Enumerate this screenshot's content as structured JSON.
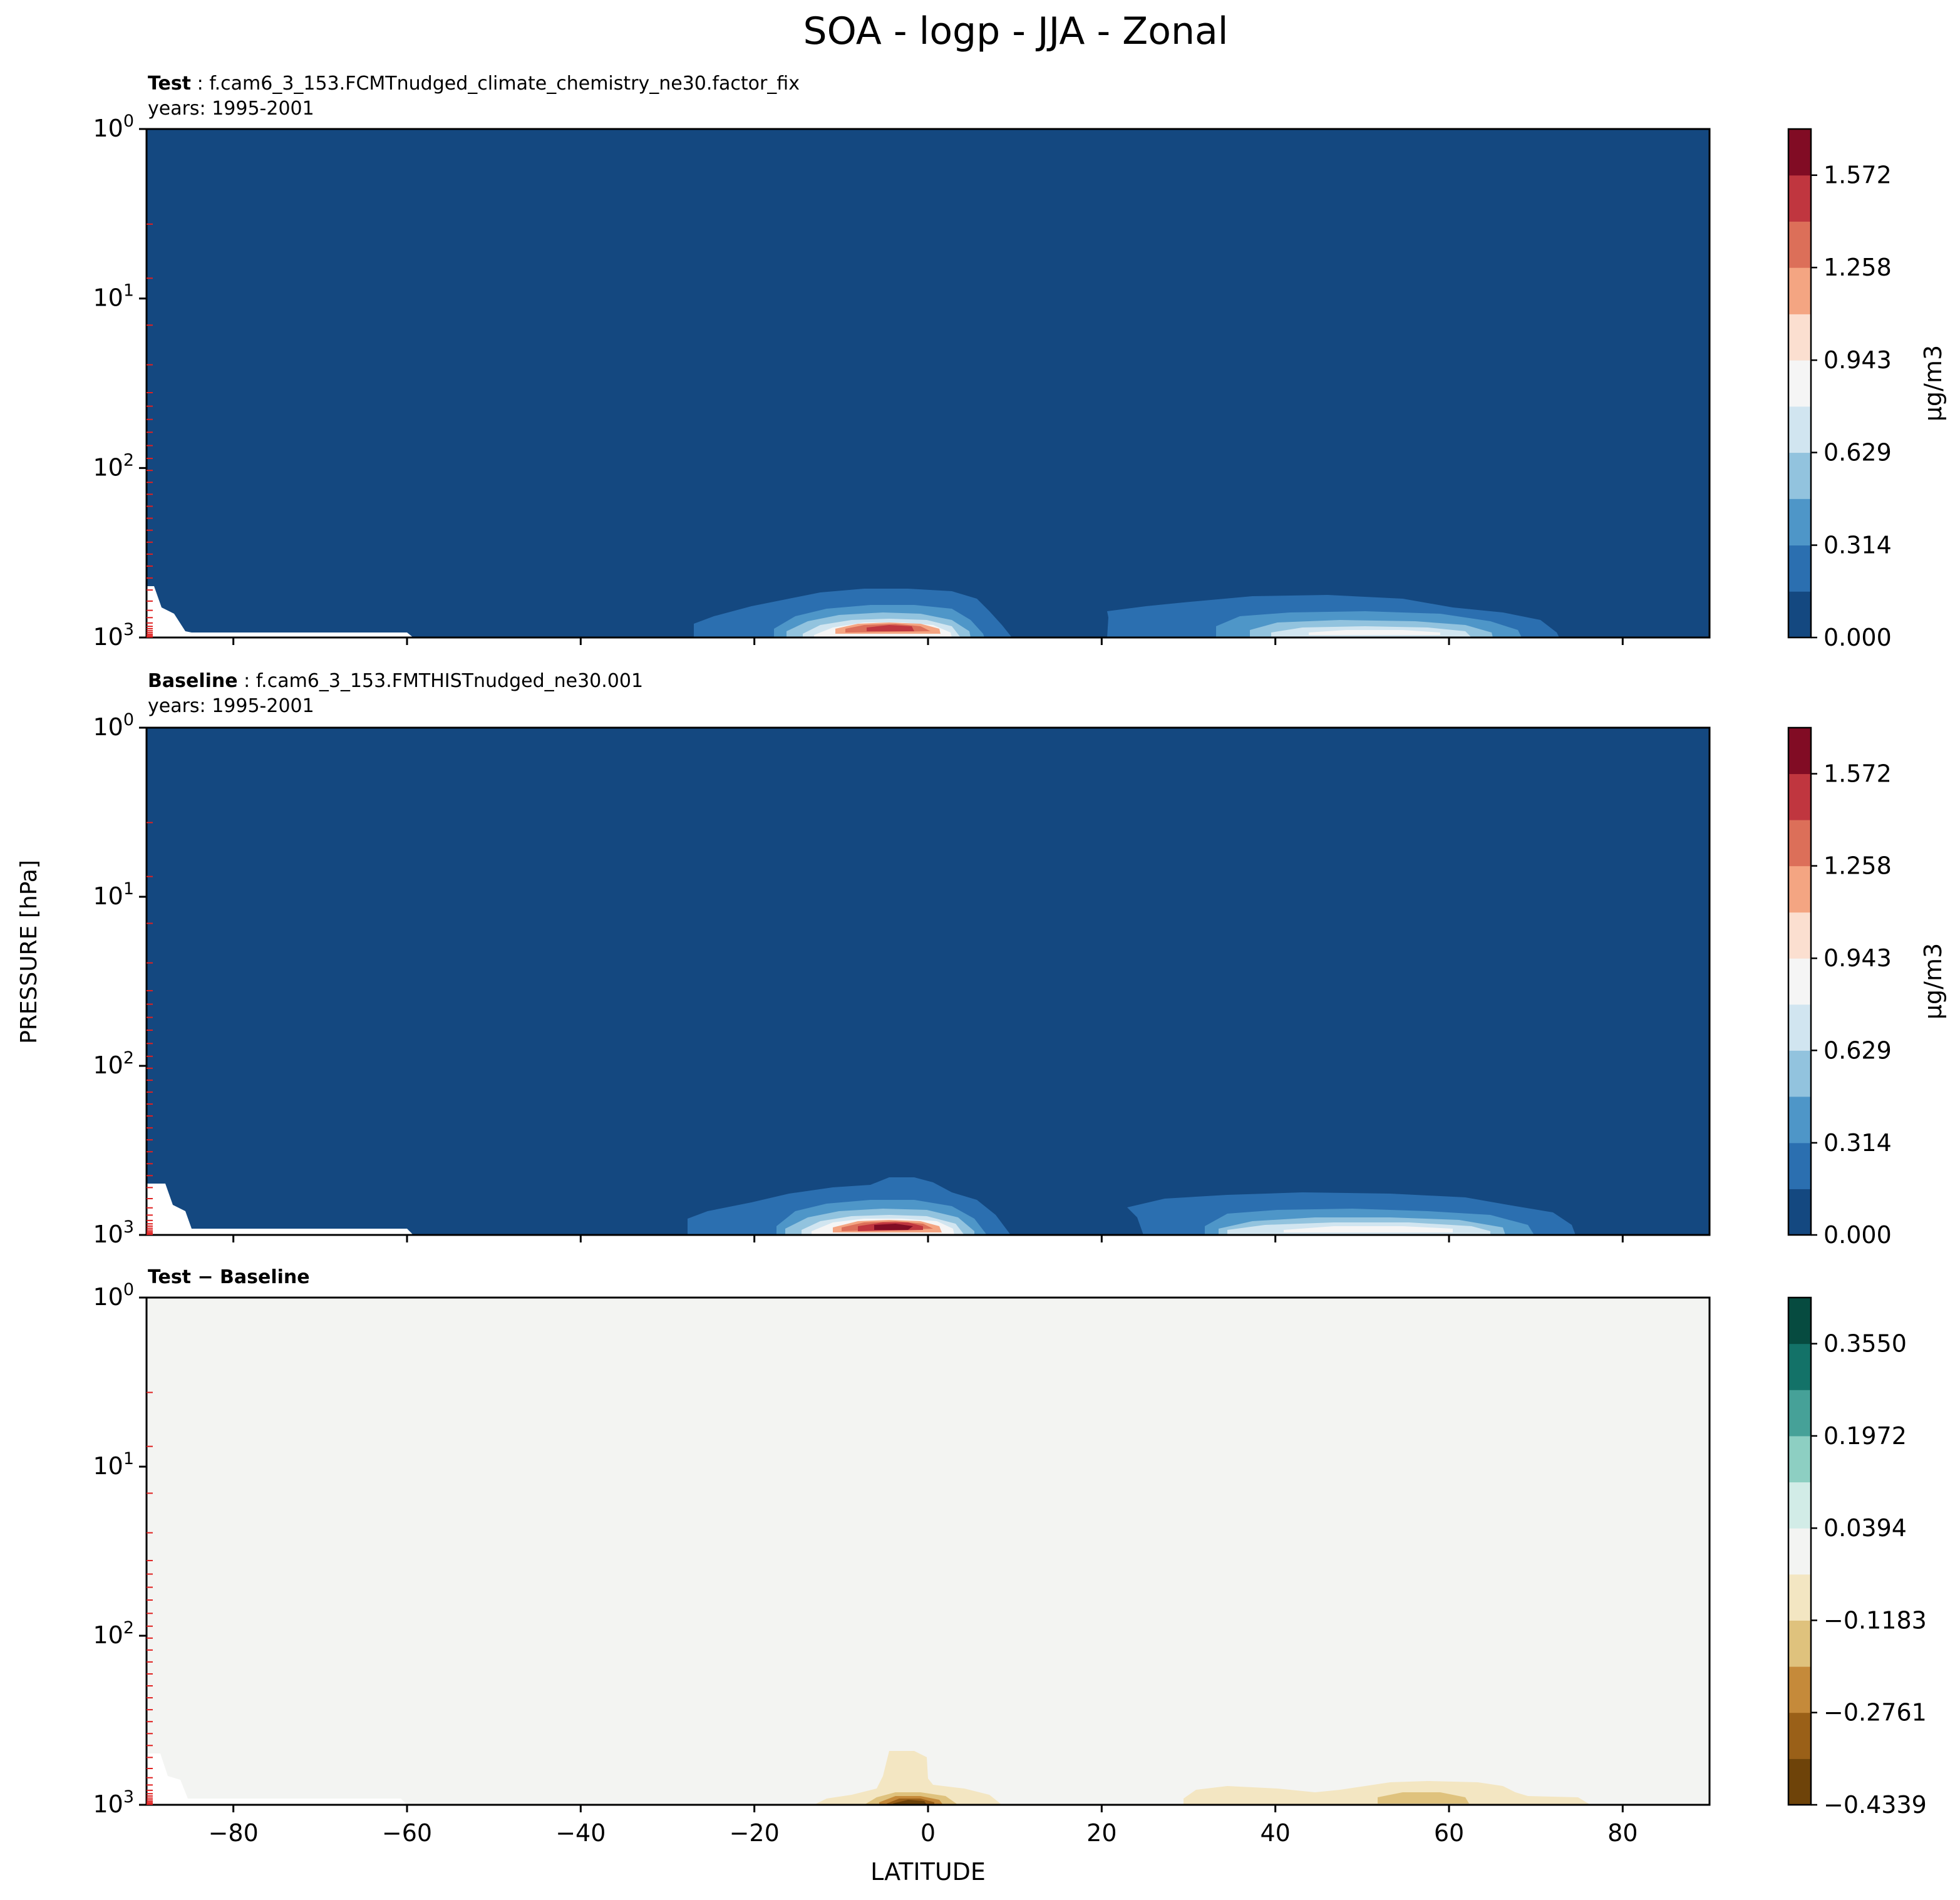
{
  "figure": {
    "title": "SOA - logp - JJA - Zonal",
    "ylabel": "PRESSURE [hPa]",
    "xlabel": "LATITUDE"
  },
  "panels": [
    {
      "label": "Test",
      "case": "f.cam6_3_153.FCMTnudged_climate_chemistry_ne30.factor_fix",
      "years": "years: 1995-2001",
      "field_color": "#144880",
      "colorbar_unit": "μg/m3",
      "colorbar_ticks": [
        "0.000",
        "0.314",
        "0.629",
        "0.943",
        "1.258",
        "1.572"
      ]
    },
    {
      "label": "Baseline",
      "case": "f.cam6_3_153.FMTHISTnudged_ne30.001",
      "years": "years: 1995-2001",
      "field_color": "#144880",
      "colorbar_unit": "μg/m3",
      "colorbar_ticks": [
        "0.000",
        "0.314",
        "0.629",
        "0.943",
        "1.258",
        "1.572"
      ]
    },
    {
      "label": "Test − Baseline",
      "case": "",
      "years": "",
      "field_color": "#f3f4f2",
      "colorbar_unit": "",
      "colorbar_ticks": [
        "−0.4339",
        "−0.2761",
        "−0.1183",
        "0.0394",
        "0.1972",
        "0.3550"
      ]
    }
  ],
  "chart_data": [
    {
      "type": "heatmap",
      "title": "Test",
      "x_axis": {
        "range": [
          -90,
          90
        ],
        "ticks": [
          -80,
          -60,
          -40,
          -20,
          0,
          20,
          40,
          60,
          80
        ]
      },
      "y_axis": {
        "scale": "log",
        "inverted": true,
        "range_hPa": [
          1,
          1000
        ],
        "ticks": [
          1,
          10,
          100,
          1000
        ]
      },
      "colorbar": {
        "cmap": "RdBu_r",
        "levels": [
          0.0,
          0.157,
          0.314,
          0.472,
          0.629,
          0.786,
          0.943,
          1.1,
          1.258,
          1.415,
          1.572,
          1.729
        ],
        "colors": [
          "#144880",
          "#2b6fb0",
          "#4e96c8",
          "#92c3de",
          "#d1e5f0",
          "#f5f5f5",
          "#fbdfd0",
          "#f4a582",
          "#dc6f59",
          "#c0363f",
          "#810c24"
        ]
      },
      "features": [
        {
          "name": "tropical max",
          "lat_center": -3,
          "value_peak": 1.6,
          "pressure_top_hPa": 550
        },
        {
          "name": "NH midlat max",
          "lat_center": 50,
          "value_peak": 0.9,
          "pressure_top_hPa": 600
        }
      ]
    },
    {
      "type": "heatmap",
      "title": "Baseline",
      "x_axis": {
        "range": [
          -90,
          90
        ],
        "ticks": [
          -80,
          -60,
          -40,
          -20,
          0,
          20,
          40,
          60,
          80
        ]
      },
      "y_axis": {
        "scale": "log",
        "inverted": true,
        "range_hPa": [
          1,
          1000
        ],
        "ticks": [
          1,
          10,
          100,
          1000
        ]
      },
      "colorbar": {
        "cmap": "RdBu_r",
        "levels": [
          0.0,
          0.157,
          0.314,
          0.472,
          0.629,
          0.786,
          0.943,
          1.1,
          1.258,
          1.415,
          1.572,
          1.729
        ],
        "colors": [
          "#144880",
          "#2b6fb0",
          "#4e96c8",
          "#92c3de",
          "#d1e5f0",
          "#f5f5f5",
          "#fbdfd0",
          "#f4a582",
          "#dc6f59",
          "#c0363f",
          "#810c24"
        ]
      },
      "features": [
        {
          "name": "tropical max",
          "lat_center": -3,
          "value_peak": 1.7,
          "pressure_top_hPa": 480
        },
        {
          "name": "NH midlat max",
          "lat_center": 50,
          "value_peak": 0.95,
          "pressure_top_hPa": 600
        }
      ]
    },
    {
      "type": "heatmap",
      "title": "Test − Baseline",
      "x_axis": {
        "range": [
          -90,
          90
        ],
        "ticks": [
          -80,
          -60,
          -40,
          -20,
          0,
          20,
          40,
          60,
          80
        ]
      },
      "y_axis": {
        "scale": "log",
        "inverted": true,
        "range_hPa": [
          1,
          1000
        ],
        "ticks": [
          1,
          10,
          100,
          1000
        ]
      },
      "colorbar": {
        "cmap": "BrBG",
        "levels": [
          -0.4339,
          -0.355,
          -0.2761,
          -0.1972,
          -0.1183,
          -0.0394,
          0.0394,
          0.1183,
          0.1972,
          0.2761,
          0.355,
          0.4339
        ],
        "colors": [
          "#6e4309",
          "#9a6018",
          "#c58a3a",
          "#dfc27d",
          "#f3e6c2",
          "#f3f4f2",
          "#d2ece7",
          "#8dcfc2",
          "#46a198",
          "#137268",
          "#064b40"
        ]
      },
      "features": [
        {
          "name": "tropical decrease",
          "lat_center": -2,
          "value_min": -0.43,
          "pressure_top_hPa": 450
        },
        {
          "name": "NH midlat decrease",
          "lat_center": 52,
          "value_min": -0.2,
          "pressure_top_hPa": 750
        }
      ]
    }
  ]
}
